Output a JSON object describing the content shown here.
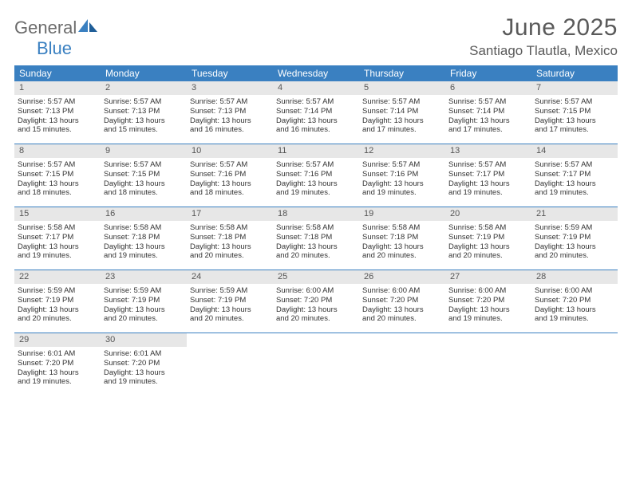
{
  "logo": {
    "part1": "General",
    "part2": "Blue"
  },
  "title": "June 2025",
  "location": "Santiago Tlautla, Mexico",
  "colors": {
    "header_bg": "#3a80c1",
    "header_text": "#ffffff",
    "daynum_bg": "#e7e7e7",
    "border": "#3a80c1",
    "logo_gray": "#6c6c6c",
    "logo_blue": "#3a80c1"
  },
  "day_names": [
    "Sunday",
    "Monday",
    "Tuesday",
    "Wednesday",
    "Thursday",
    "Friday",
    "Saturday"
  ],
  "weeks": [
    [
      {
        "n": "1",
        "sr": "Sunrise: 5:57 AM",
        "ss": "Sunset: 7:13 PM",
        "d1": "Daylight: 13 hours",
        "d2": "and 15 minutes."
      },
      {
        "n": "2",
        "sr": "Sunrise: 5:57 AM",
        "ss": "Sunset: 7:13 PM",
        "d1": "Daylight: 13 hours",
        "d2": "and 15 minutes."
      },
      {
        "n": "3",
        "sr": "Sunrise: 5:57 AM",
        "ss": "Sunset: 7:13 PM",
        "d1": "Daylight: 13 hours",
        "d2": "and 16 minutes."
      },
      {
        "n": "4",
        "sr": "Sunrise: 5:57 AM",
        "ss": "Sunset: 7:14 PM",
        "d1": "Daylight: 13 hours",
        "d2": "and 16 minutes."
      },
      {
        "n": "5",
        "sr": "Sunrise: 5:57 AM",
        "ss": "Sunset: 7:14 PM",
        "d1": "Daylight: 13 hours",
        "d2": "and 17 minutes."
      },
      {
        "n": "6",
        "sr": "Sunrise: 5:57 AM",
        "ss": "Sunset: 7:14 PM",
        "d1": "Daylight: 13 hours",
        "d2": "and 17 minutes."
      },
      {
        "n": "7",
        "sr": "Sunrise: 5:57 AM",
        "ss": "Sunset: 7:15 PM",
        "d1": "Daylight: 13 hours",
        "d2": "and 17 minutes."
      }
    ],
    [
      {
        "n": "8",
        "sr": "Sunrise: 5:57 AM",
        "ss": "Sunset: 7:15 PM",
        "d1": "Daylight: 13 hours",
        "d2": "and 18 minutes."
      },
      {
        "n": "9",
        "sr": "Sunrise: 5:57 AM",
        "ss": "Sunset: 7:15 PM",
        "d1": "Daylight: 13 hours",
        "d2": "and 18 minutes."
      },
      {
        "n": "10",
        "sr": "Sunrise: 5:57 AM",
        "ss": "Sunset: 7:16 PM",
        "d1": "Daylight: 13 hours",
        "d2": "and 18 minutes."
      },
      {
        "n": "11",
        "sr": "Sunrise: 5:57 AM",
        "ss": "Sunset: 7:16 PM",
        "d1": "Daylight: 13 hours",
        "d2": "and 19 minutes."
      },
      {
        "n": "12",
        "sr": "Sunrise: 5:57 AM",
        "ss": "Sunset: 7:16 PM",
        "d1": "Daylight: 13 hours",
        "d2": "and 19 minutes."
      },
      {
        "n": "13",
        "sr": "Sunrise: 5:57 AM",
        "ss": "Sunset: 7:17 PM",
        "d1": "Daylight: 13 hours",
        "d2": "and 19 minutes."
      },
      {
        "n": "14",
        "sr": "Sunrise: 5:57 AM",
        "ss": "Sunset: 7:17 PM",
        "d1": "Daylight: 13 hours",
        "d2": "and 19 minutes."
      }
    ],
    [
      {
        "n": "15",
        "sr": "Sunrise: 5:58 AM",
        "ss": "Sunset: 7:17 PM",
        "d1": "Daylight: 13 hours",
        "d2": "and 19 minutes."
      },
      {
        "n": "16",
        "sr": "Sunrise: 5:58 AM",
        "ss": "Sunset: 7:18 PM",
        "d1": "Daylight: 13 hours",
        "d2": "and 19 minutes."
      },
      {
        "n": "17",
        "sr": "Sunrise: 5:58 AM",
        "ss": "Sunset: 7:18 PM",
        "d1": "Daylight: 13 hours",
        "d2": "and 20 minutes."
      },
      {
        "n": "18",
        "sr": "Sunrise: 5:58 AM",
        "ss": "Sunset: 7:18 PM",
        "d1": "Daylight: 13 hours",
        "d2": "and 20 minutes."
      },
      {
        "n": "19",
        "sr": "Sunrise: 5:58 AM",
        "ss": "Sunset: 7:18 PM",
        "d1": "Daylight: 13 hours",
        "d2": "and 20 minutes."
      },
      {
        "n": "20",
        "sr": "Sunrise: 5:58 AM",
        "ss": "Sunset: 7:19 PM",
        "d1": "Daylight: 13 hours",
        "d2": "and 20 minutes."
      },
      {
        "n": "21",
        "sr": "Sunrise: 5:59 AM",
        "ss": "Sunset: 7:19 PM",
        "d1": "Daylight: 13 hours",
        "d2": "and 20 minutes."
      }
    ],
    [
      {
        "n": "22",
        "sr": "Sunrise: 5:59 AM",
        "ss": "Sunset: 7:19 PM",
        "d1": "Daylight: 13 hours",
        "d2": "and 20 minutes."
      },
      {
        "n": "23",
        "sr": "Sunrise: 5:59 AM",
        "ss": "Sunset: 7:19 PM",
        "d1": "Daylight: 13 hours",
        "d2": "and 20 minutes."
      },
      {
        "n": "24",
        "sr": "Sunrise: 5:59 AM",
        "ss": "Sunset: 7:19 PM",
        "d1": "Daylight: 13 hours",
        "d2": "and 20 minutes."
      },
      {
        "n": "25",
        "sr": "Sunrise: 6:00 AM",
        "ss": "Sunset: 7:20 PM",
        "d1": "Daylight: 13 hours",
        "d2": "and 20 minutes."
      },
      {
        "n": "26",
        "sr": "Sunrise: 6:00 AM",
        "ss": "Sunset: 7:20 PM",
        "d1": "Daylight: 13 hours",
        "d2": "and 20 minutes."
      },
      {
        "n": "27",
        "sr": "Sunrise: 6:00 AM",
        "ss": "Sunset: 7:20 PM",
        "d1": "Daylight: 13 hours",
        "d2": "and 19 minutes."
      },
      {
        "n": "28",
        "sr": "Sunrise: 6:00 AM",
        "ss": "Sunset: 7:20 PM",
        "d1": "Daylight: 13 hours",
        "d2": "and 19 minutes."
      }
    ],
    [
      {
        "n": "29",
        "sr": "Sunrise: 6:01 AM",
        "ss": "Sunset: 7:20 PM",
        "d1": "Daylight: 13 hours",
        "d2": "and 19 minutes."
      },
      {
        "n": "30",
        "sr": "Sunrise: 6:01 AM",
        "ss": "Sunset: 7:20 PM",
        "d1": "Daylight: 13 hours",
        "d2": "and 19 minutes."
      },
      null,
      null,
      null,
      null,
      null
    ]
  ]
}
